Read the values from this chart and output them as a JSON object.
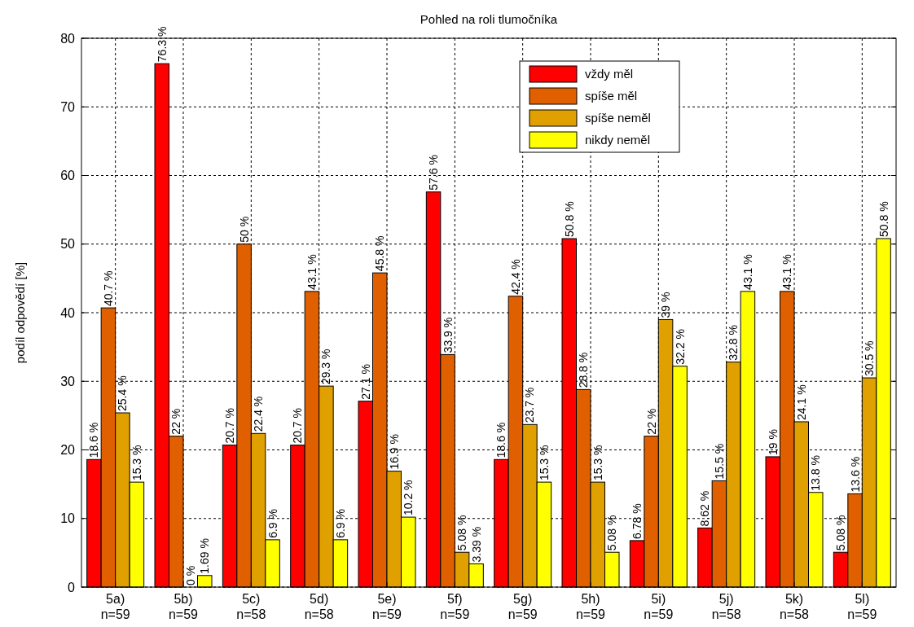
{
  "chart_data": {
    "type": "bar",
    "title": "Pohled na roli tlumočníka",
    "ylabel": "podíl odpovědí [%]",
    "categories": [
      "5a)\nn=59",
      "5b)\nn=59",
      "5c)\nn=58",
      "5d)\nn=58",
      "5e)\nn=59",
      "5f)\nn=59",
      "5g)\nn=59",
      "5h)\nn=59",
      "5i)\nn=59",
      "5j)\nn=58",
      "5k)\nn=58",
      "5l)\nn=59"
    ],
    "series": [
      {
        "name": "vždy měl",
        "color": "#ff0000",
        "values": [
          18.6,
          76.3,
          20.7,
          20.7,
          27.1,
          57.6,
          18.6,
          50.8,
          6.78,
          8.62,
          19,
          5.08
        ],
        "value_labels": [
          "18.6 %",
          "76.3 %",
          "20.7 %",
          "20.7 %",
          "27.1 %",
          "57.6 %",
          "18.6 %",
          "50.8 %",
          "6.78 %",
          "8.62 %",
          "19 %",
          "5.08 %"
        ]
      },
      {
        "name": "spíše měl",
        "color": "#e06000",
        "values": [
          40.7,
          22,
          50,
          43.1,
          45.8,
          33.9,
          42.4,
          28.8,
          22,
          15.5,
          43.1,
          13.6
        ],
        "value_labels": [
          "40.7 %",
          "22 %",
          "50 %",
          "43.1 %",
          "45.8 %",
          "33.9 %",
          "42.4 %",
          "28.8 %",
          "22 %",
          "15.5 %",
          "43.1 %",
          "13.6 %"
        ]
      },
      {
        "name": "spíše neměl",
        "color": "#e0a000",
        "values": [
          25.4,
          0,
          22.4,
          29.3,
          16.9,
          5.08,
          23.7,
          15.3,
          39,
          32.8,
          24.1,
          30.5
        ],
        "value_labels": [
          "25.4 %",
          "0 %",
          "22.4 %",
          "29.3 %",
          "16.9 %",
          "5.08 %",
          "23.7 %",
          "15.3 %",
          "39 %",
          "32.8 %",
          "24.1 %",
          "30.5 %"
        ]
      },
      {
        "name": "nikdy neměl",
        "color": "#ffff00",
        "values": [
          15.3,
          1.69,
          6.9,
          6.9,
          10.2,
          3.39,
          15.3,
          5.08,
          32.2,
          43.1,
          13.8,
          50.8
        ],
        "value_labels": [
          "15.3 %",
          "1.69 %",
          "6.9 %",
          "6.9 %",
          "10.2 %",
          "3.39 %",
          "15.3 %",
          "5.08 %",
          "32.2 %",
          "43.1 %",
          "13.8 %",
          "50.8 %"
        ]
      }
    ],
    "ylim": [
      0,
      80
    ],
    "yticks": [
      0,
      10,
      20,
      30,
      40,
      50,
      60,
      70,
      80
    ],
    "grid": true,
    "legend": "top right"
  }
}
